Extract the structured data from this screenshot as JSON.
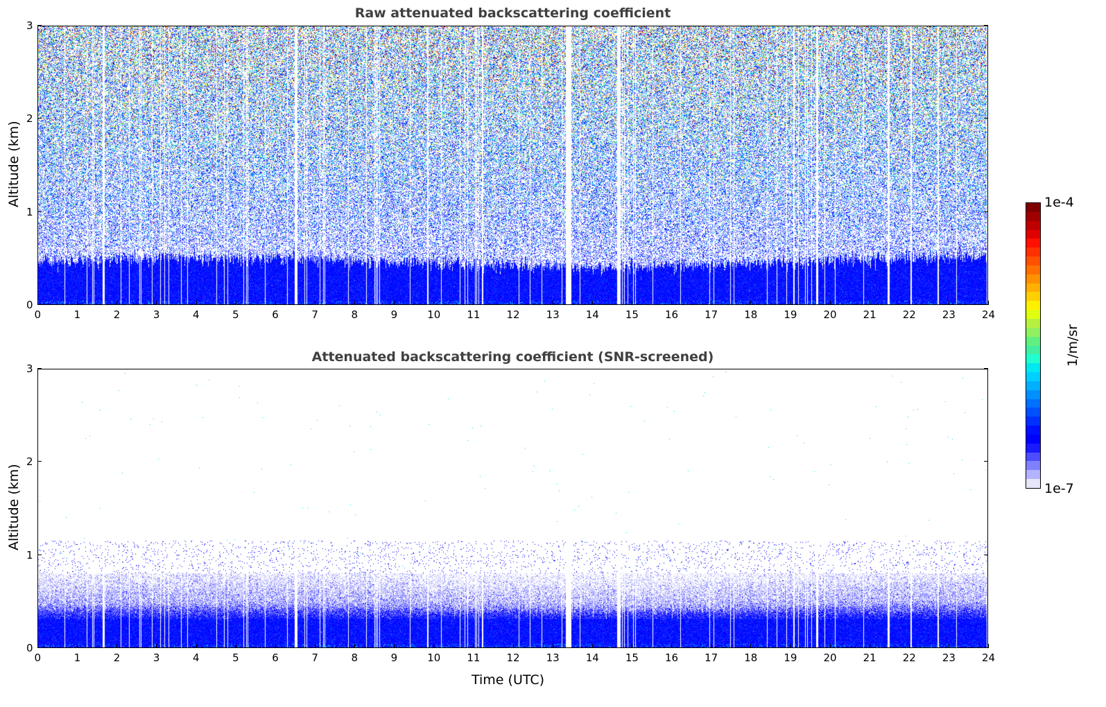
{
  "chart_data": [
    {
      "type": "heatmap",
      "title": "Raw attenuated backscattering coefficient",
      "xlabel": "",
      "ylabel": "Altitude (km)",
      "xlim": [
        0,
        24
      ],
      "ylim": [
        0,
        3
      ],
      "xticks": [
        "0",
        "1",
        "2",
        "3",
        "4",
        "5",
        "6",
        "7",
        "8",
        "9",
        "10",
        "11",
        "12",
        "13",
        "14",
        "15",
        "16",
        "17",
        "18",
        "19",
        "20",
        "21",
        "22",
        "23",
        "24"
      ],
      "yticks": [
        "0",
        "1",
        "2",
        "3"
      ],
      "screened": false,
      "boundary_layer_top_km": 0.45,
      "data_gaps_utc": [
        [
          1.62,
          1.68
        ],
        [
          6.48,
          6.54
        ],
        [
          13.33,
          13.48
        ],
        [
          14.63,
          14.72
        ],
        [
          19.68,
          19.72
        ],
        [
          21.48,
          21.52
        ]
      ]
    },
    {
      "type": "heatmap",
      "title": "Attenuated backscattering coefficient (SNR-screened)",
      "xlabel": "Time (UTC)",
      "ylabel": "Altitude (km)",
      "xlim": [
        0,
        24
      ],
      "ylim": [
        0,
        3
      ],
      "xticks": [
        "0",
        "1",
        "2",
        "3",
        "4",
        "5",
        "6",
        "7",
        "8",
        "9",
        "10",
        "11",
        "12",
        "13",
        "14",
        "15",
        "16",
        "17",
        "18",
        "19",
        "20",
        "21",
        "22",
        "23",
        "24"
      ],
      "yticks": [
        "0",
        "1",
        "2",
        "3"
      ],
      "screened": true,
      "boundary_layer_top_km": 0.45,
      "aerosol_layer_top_km": 0.8,
      "data_gaps_utc": [
        [
          1.62,
          1.68
        ],
        [
          6.48,
          6.54
        ],
        [
          13.33,
          13.48
        ],
        [
          14.63,
          14.72
        ],
        [
          19.68,
          19.72
        ],
        [
          21.48,
          21.52
        ]
      ]
    }
  ],
  "colorbar": {
    "label": "1/m/sr",
    "min_label": "1e-7",
    "max_label": "1e-4",
    "log_range": [
      -7,
      -4
    ],
    "colors": [
      "#e6e6fa",
      "#b3b3ff",
      "#8080ff",
      "#4d4dff",
      "#1a1aff",
      "#0000ff",
      "#0010ff",
      "#0030ff",
      "#0050ff",
      "#0070ff",
      "#0090ff",
      "#00b0ff",
      "#00d0ff",
      "#00e8f0",
      "#20ffd0",
      "#40f0a0",
      "#60f080",
      "#90f060",
      "#b8f040",
      "#e0ff10",
      "#fff000",
      "#ffd000",
      "#ffb000",
      "#ff9000",
      "#ff7000",
      "#ff5000",
      "#ff3000",
      "#ff1000",
      "#e00000",
      "#c00000",
      "#a00000",
      "#800000"
    ]
  }
}
